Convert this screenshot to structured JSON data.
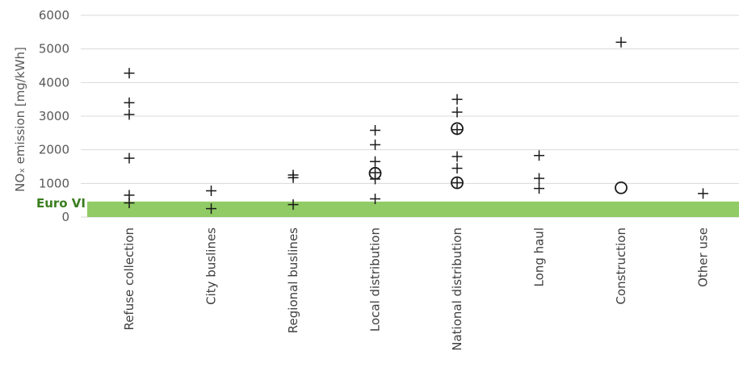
{
  "chart_data": {
    "type": "scatter",
    "title": "",
    "xlabel": "",
    "ylabel": "NOₓ emission [mg/kWh]",
    "ylim": [
      0,
      6000
    ],
    "yticks": [
      0,
      1000,
      2000,
      3000,
      4000,
      5000,
      6000
    ],
    "grid": "horizontal",
    "categories": [
      "Refuse collection",
      "City buslines",
      "Regional buslines",
      "Local distribution",
      "National distribution",
      "Long haul",
      "Construction",
      "Other use"
    ],
    "threshold": {
      "label": "Euro VI",
      "ymin": 0,
      "ymax": 460,
      "color": "#7cc24a"
    },
    "series": [
      {
        "marker": "plus",
        "points": [
          {
            "category": "Refuse collection",
            "y": 4280
          },
          {
            "category": "Refuse collection",
            "y": 3400
          },
          {
            "category": "Refuse collection",
            "y": 3050
          },
          {
            "category": "Refuse collection",
            "y": 1750
          },
          {
            "category": "Refuse collection",
            "y": 650
          },
          {
            "category": "Refuse collection",
            "y": 420
          },
          {
            "category": "City buslines",
            "y": 780
          },
          {
            "category": "City buslines",
            "y": 250
          },
          {
            "category": "Regional buslines",
            "y": 1250
          },
          {
            "category": "Regional buslines",
            "y": 1170
          },
          {
            "category": "Regional buslines",
            "y": 370
          },
          {
            "category": "Local distribution",
            "y": 2580
          },
          {
            "category": "Local distribution",
            "y": 2150
          },
          {
            "category": "Local distribution",
            "y": 1650
          },
          {
            "category": "Local distribution",
            "y": 1320
          },
          {
            "category": "Local distribution",
            "y": 1130
          },
          {
            "category": "Local distribution",
            "y": 540
          },
          {
            "category": "National distribution",
            "y": 3500
          },
          {
            "category": "National distribution",
            "y": 3120
          },
          {
            "category": "National distribution",
            "y": 2600
          },
          {
            "category": "National distribution",
            "y": 1800
          },
          {
            "category": "National distribution",
            "y": 1450
          },
          {
            "category": "National distribution",
            "y": 1020
          },
          {
            "category": "Long haul",
            "y": 1830
          },
          {
            "category": "Long haul",
            "y": 1150
          },
          {
            "category": "Long haul",
            "y": 850
          },
          {
            "category": "Construction",
            "y": 5200
          },
          {
            "category": "Other use",
            "y": 700
          }
        ]
      },
      {
        "marker": "circle",
        "points": [
          {
            "category": "Local distribution",
            "y": 1300
          },
          {
            "category": "National distribution",
            "y": 2630
          },
          {
            "category": "National distribution",
            "y": 1020
          },
          {
            "category": "Construction",
            "y": 870
          }
        ]
      }
    ]
  },
  "colors": {
    "marker": "#1a1a1a",
    "grid": "#d9d9d9",
    "band": "#7cc24a",
    "band_label": "#3a7d1e"
  }
}
